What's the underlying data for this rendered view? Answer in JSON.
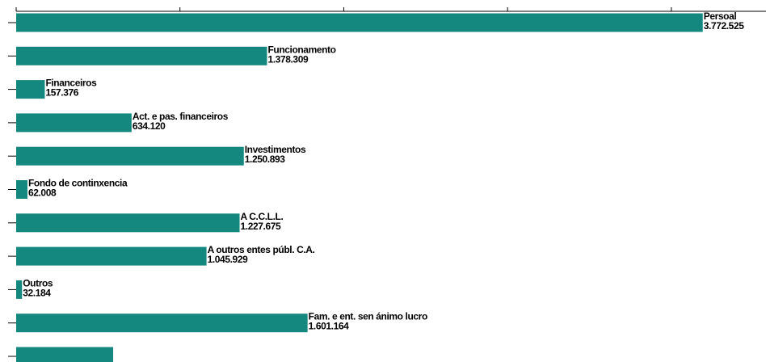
{
  "chart_data": {
    "type": "barh",
    "categories": [
      "Persoal",
      "Funcionamento",
      "Financeiros",
      "Act. e pas. financeiros",
      "Investimentos",
      "Fondo de continxencia",
      "A C.C.L.L.",
      "A outros entes públ. C.A.",
      "Outros",
      "Fam. e ent. sen ánimo lucro",
      null
    ],
    "values": [
      3772525,
      1378309,
      157376,
      634120,
      1250893,
      62008,
      1227675,
      1045929,
      32184,
      1601164,
      533000
    ],
    "value_labels": [
      "3.772.525",
      "1.378.309",
      "157.376",
      "634.120",
      "1.250.893",
      "62.008",
      "1.227.675",
      "1.045.929",
      "32.184",
      "1.601.164",
      null
    ],
    "color": "#14877f",
    "xlim": [
      0,
      4120000
    ],
    "xticks": [
      0,
      900000,
      1800000,
      2700000,
      3600000
    ]
  }
}
